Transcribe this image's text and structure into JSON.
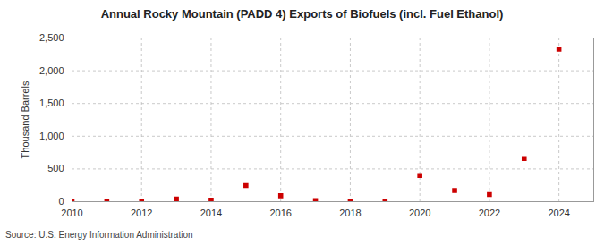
{
  "chart_data": {
    "type": "scatter",
    "title": "Annual Rocky Mountain (PADD 4) Exports of Biofuels (incl. Fuel Ethanol)",
    "y_label": "Thousand Barrels",
    "caption": "Source: U.S. Energy Information Administration",
    "x": [
      2010,
      2011,
      2012,
      2013,
      2014,
      2015,
      2016,
      2017,
      2018,
      2019,
      2020,
      2021,
      2022,
      2023,
      2024
    ],
    "values": [
      2,
      10,
      8,
      40,
      25,
      245,
      90,
      15,
      3,
      5,
      400,
      170,
      110,
      660,
      2330
    ],
    "color": "#cc0000",
    "marker": "square",
    "xlim": [
      2010,
      2025
    ],
    "xticks": [
      2010,
      2012,
      2014,
      2016,
      2018,
      2020,
      2022,
      2024
    ],
    "ylim": [
      0,
      2500
    ],
    "yticks": [
      0,
      500,
      {
        "value": 1000,
        "label": "1,000"
      },
      {
        "value": 1500,
        "label": "1,500"
      },
      {
        "value": 2000,
        "label": "2,000"
      },
      {
        "value": 2500,
        "label": "2,500"
      }
    ],
    "grid": true
  }
}
